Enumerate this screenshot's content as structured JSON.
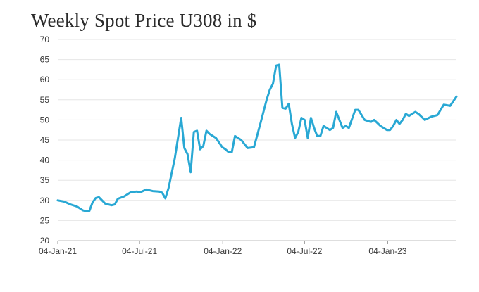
{
  "chart_data": {
    "type": "line",
    "title": "Weekly Spot Price U308 in $",
    "xlabel": "",
    "ylabel": "",
    "ylim": [
      20,
      70
    ],
    "yticks": [
      20,
      25,
      30,
      35,
      40,
      45,
      50,
      55,
      60,
      65,
      70
    ],
    "xlim": [
      "2021-01-04",
      "2023-06-05"
    ],
    "xticks": [
      "04-Jan-21",
      "04-Jul-21",
      "04-Jan-22",
      "04-Jul-22",
      "04-Jan-23"
    ],
    "xtick_dates": [
      "2021-01-04",
      "2021-07-04",
      "2022-01-04",
      "2022-07-04",
      "2023-01-04"
    ],
    "grid": "horizontal",
    "line_color": "#29a8d4",
    "series": [
      {
        "x": [
          "2021-01-04",
          "2021-01-18",
          "2021-02-01",
          "2021-02-15",
          "2021-03-01",
          "2021-03-08",
          "2021-03-15",
          "2021-03-22",
          "2021-03-29",
          "2021-04-05",
          "2021-04-19",
          "2021-05-03",
          "2021-05-10",
          "2021-05-17",
          "2021-05-31",
          "2021-06-14",
          "2021-06-28",
          "2021-07-05",
          "2021-07-19",
          "2021-08-02",
          "2021-08-16",
          "2021-08-23",
          "2021-08-30",
          "2021-09-06",
          "2021-09-20",
          "2021-10-04",
          "2021-10-11",
          "2021-10-18",
          "2021-10-25",
          "2021-11-01",
          "2021-11-08",
          "2021-11-15",
          "2021-11-22",
          "2021-11-29",
          "2021-12-06",
          "2021-12-20",
          "2022-01-03",
          "2022-01-10",
          "2022-01-17",
          "2022-01-24",
          "2022-01-31",
          "2022-02-14",
          "2022-02-28",
          "2022-03-14",
          "2022-03-28",
          "2022-04-11",
          "2022-04-18",
          "2022-04-25",
          "2022-05-02",
          "2022-05-09",
          "2022-05-16",
          "2022-05-23",
          "2022-05-30",
          "2022-06-06",
          "2022-06-13",
          "2022-06-20",
          "2022-06-27",
          "2022-07-04",
          "2022-07-11",
          "2022-07-18",
          "2022-07-25",
          "2022-08-01",
          "2022-08-08",
          "2022-08-15",
          "2022-08-22",
          "2022-08-29",
          "2022-09-05",
          "2022-09-12",
          "2022-09-19",
          "2022-09-26",
          "2022-10-03",
          "2022-10-10",
          "2022-10-24",
          "2022-10-31",
          "2022-11-14",
          "2022-11-28",
          "2022-12-05",
          "2022-12-19",
          "2023-01-02",
          "2023-01-09",
          "2023-01-16",
          "2023-01-23",
          "2023-01-30",
          "2023-02-06",
          "2023-02-13",
          "2023-02-20",
          "2023-03-06",
          "2023-03-13",
          "2023-03-27",
          "2023-04-10",
          "2023-04-17",
          "2023-04-24",
          "2023-05-08",
          "2023-05-22",
          "2023-06-05"
        ],
        "values": [
          30.0,
          29.7,
          29.0,
          28.5,
          27.5,
          27.3,
          27.4,
          29.5,
          30.6,
          30.8,
          29.2,
          28.8,
          29.0,
          30.4,
          31.0,
          32.0,
          32.2,
          32.0,
          32.7,
          32.3,
          32.2,
          31.9,
          30.5,
          33.0,
          40.5,
          50.5,
          43.0,
          41.5,
          37.0,
          47.0,
          47.3,
          42.7,
          43.5,
          47.3,
          46.5,
          45.5,
          43.2,
          42.7,
          42.0,
          42.0,
          46.0,
          45.0,
          43.0,
          43.2,
          49.0,
          55.0,
          57.5,
          59.0,
          63.5,
          63.7,
          53.0,
          52.8,
          54.0,
          49.0,
          45.5,
          47.0,
          50.5,
          50.0,
          45.5,
          50.5,
          48.0,
          46.0,
          46.0,
          48.5,
          48.0,
          47.5,
          48.0,
          52.0,
          50.0,
          48.0,
          48.5,
          48.0,
          52.5,
          52.5,
          50.0,
          49.5,
          50.0,
          48.5,
          47.5,
          47.5,
          48.5,
          50.0,
          49.0,
          50.0,
          51.5,
          51.0,
          52.0,
          51.5,
          50.0,
          50.8,
          51.0,
          51.2,
          53.8,
          53.5,
          55.8
        ]
      }
    ]
  }
}
